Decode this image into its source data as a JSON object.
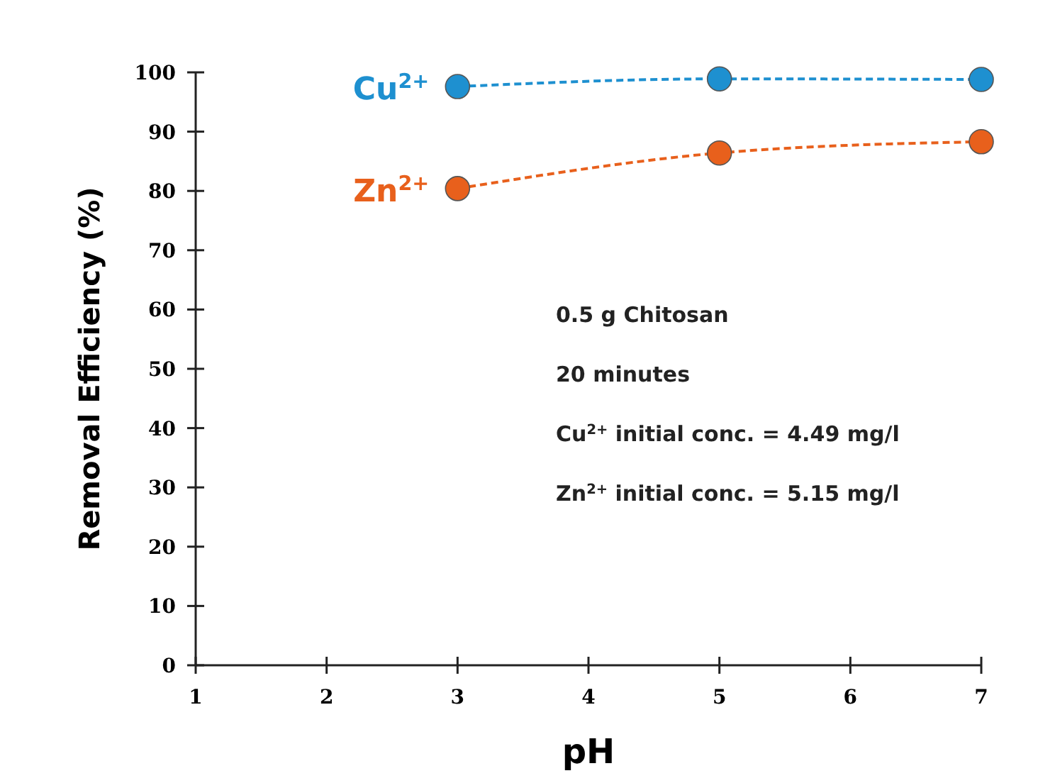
{
  "chart_data": {
    "type": "line",
    "xlabel": "pH",
    "ylabel": "Removal Efficiency (%)",
    "x": [
      3,
      5,
      7
    ],
    "series": [
      {
        "name": "Cu$^{2+}$",
        "color": "#1e90d0",
        "values": [
          97.6,
          98.9,
          98.8
        ]
      },
      {
        "name": "Zn$^{2+}$",
        "color": "#e8601c",
        "values": [
          80.4,
          86.4,
          88.3
        ]
      }
    ],
    "xlim": [
      1,
      7
    ],
    "xticks": [
      1,
      2,
      3,
      4,
      5,
      6,
      7
    ],
    "ylim": [
      0,
      100
    ],
    "yticks": [
      0,
      10,
      20,
      30,
      40,
      50,
      60,
      70,
      80,
      90,
      100
    ],
    "grid": false,
    "legend": false,
    "marker": "circle",
    "line_style": "dashed",
    "annotations": [
      "0.5 g Chitosan",
      "20 minutes",
      "Cu$^{2+}$ initial conc. = 4.49 mg/l",
      "Zn$^{2+}$ initial conc. = 5.15 mg/l"
    ]
  }
}
